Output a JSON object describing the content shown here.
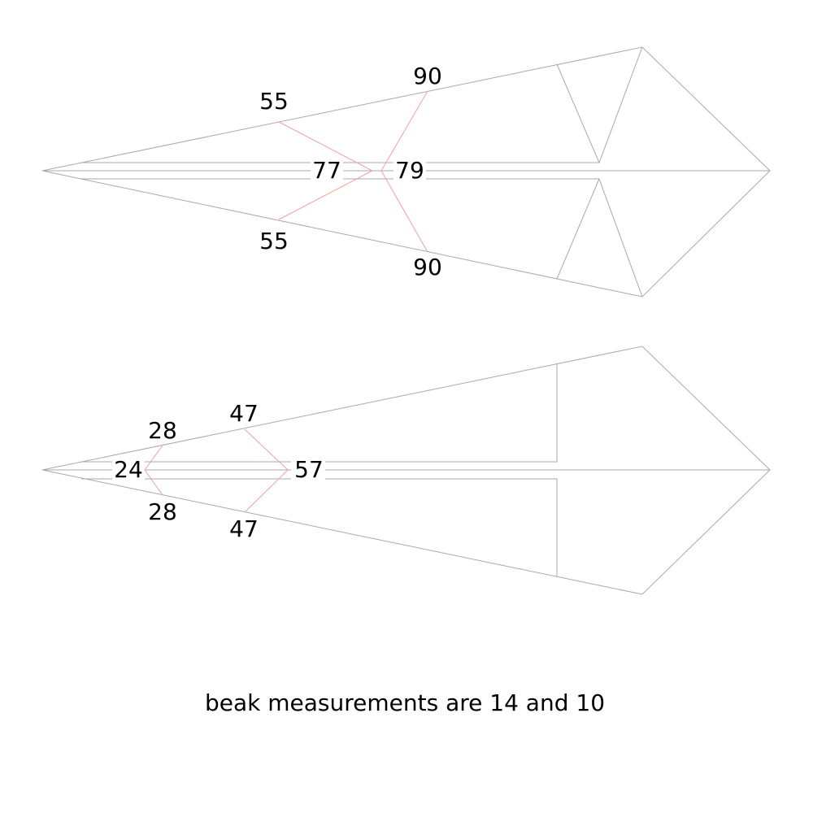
{
  "diagram_top": {
    "labels": {
      "upper_inner": "55",
      "upper_outer": "90",
      "lower_inner": "55",
      "lower_outer": "90",
      "center_left": "77",
      "center_right": "79"
    }
  },
  "diagram_bottom": {
    "labels": {
      "upper_inner": "28",
      "upper_outer": "47",
      "lower_inner": "28",
      "lower_outer": "47",
      "center_left": "24",
      "center_right": "57"
    }
  },
  "caption": "beak measurements are 14 and 10",
  "colors": {
    "outline": "#a9a9a9",
    "cut_lines": "#f2a0a0",
    "text": "#000000",
    "background": "#ffffff"
  }
}
